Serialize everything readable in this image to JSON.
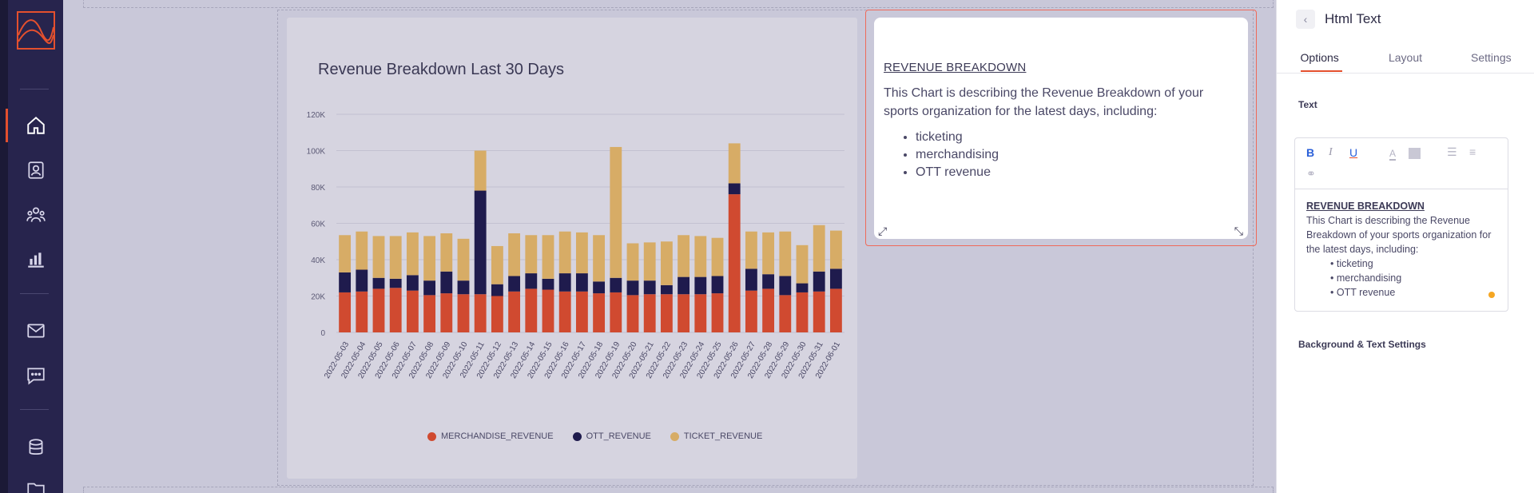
{
  "nav": {
    "items": [
      {
        "icon": "home-icon"
      },
      {
        "icon": "profile-icon"
      },
      {
        "icon": "users-icon"
      },
      {
        "icon": "bar-chart-icon"
      },
      {
        "icon": "mail-icon"
      },
      {
        "icon": "chat-icon"
      },
      {
        "icon": "database-icon"
      },
      {
        "icon": "folder-icon"
      }
    ]
  },
  "chart": {
    "title": "Revenue Breakdown Last 30 Days",
    "legend": [
      "MERCHANDISE_REVENUE",
      "OTT_REVENUE",
      "TICKET_REVENUE"
    ]
  },
  "chart_data": {
    "type": "bar",
    "title": "Revenue Breakdown Last 30 Days",
    "stacked": true,
    "ylim": [
      0,
      120000
    ],
    "yticks": [
      "0",
      "20K",
      "40K",
      "60K",
      "80K",
      "100K",
      "120K"
    ],
    "categories": [
      "2022-05-03",
      "2022-05-04",
      "2022-05-05",
      "2022-05-06",
      "2022-05-07",
      "2022-05-08",
      "2022-05-09",
      "2022-05-10",
      "2022-05-11",
      "2022-05-12",
      "2022-05-13",
      "2022-05-14",
      "2022-05-15",
      "2022-05-16",
      "2022-05-17",
      "2022-05-18",
      "2022-05-19",
      "2022-05-20",
      "2022-05-21",
      "2022-05-22",
      "2022-05-23",
      "2022-05-24",
      "2022-05-25",
      "2022-05-26",
      "2022-05-27",
      "2022-05-28",
      "2022-05-29",
      "2022-05-30",
      "2022-05-31",
      "2022-06-01"
    ],
    "series": [
      {
        "name": "MERCHANDISE_REVENUE",
        "color": "#d04a30",
        "values": [
          22000,
          22500,
          24000,
          24500,
          23000,
          20500,
          21500,
          21000,
          21000,
          20000,
          22500,
          24000,
          23500,
          22500,
          22500,
          21500,
          22000,
          20500,
          21000,
          21000,
          21000,
          21000,
          21500,
          76000,
          23000,
          24000,
          20500,
          22000,
          22500,
          24000
        ]
      },
      {
        "name": "OTT_REVENUE",
        "color": "#1f1b4d",
        "values": [
          11000,
          12000,
          6000,
          5000,
          8500,
          8000,
          12000,
          7500,
          57000,
          6500,
          8500,
          8500,
          6000,
          10000,
          10000,
          6500,
          8000,
          8000,
          7500,
          5000,
          9500,
          9500,
          9500,
          6000,
          12000,
          8000,
          10500,
          5000,
          11000,
          11000
        ]
      },
      {
        "name": "TICKET_REVENUE",
        "color": "#d7ac66",
        "values": [
          20500,
          21000,
          23000,
          23500,
          23500,
          24500,
          21000,
          23000,
          22000,
          21000,
          23500,
          21000,
          24000,
          23000,
          22500,
          25500,
          72000,
          20500,
          21000,
          24000,
          23000,
          22500,
          21000,
          22000,
          20500,
          23000,
          24500,
          21000,
          25500,
          21000
        ]
      }
    ]
  },
  "text_card": {
    "heading": "REVENUE BREAKDOWN",
    "paragraph": "This Chart is describing the Revenue Breakdown of your sports organization for the latest days, including:",
    "items": [
      "ticketing",
      "merchandising",
      "OTT revenue"
    ]
  },
  "panel": {
    "title": "Html Text",
    "tabs": [
      "Options",
      "Layout",
      "Settings"
    ],
    "active_tab": "Options",
    "text_label": "Text",
    "bg_label": "Background & Text Settings",
    "editor": {
      "heading": "REVENUE BREAKDOWN",
      "paragraph": "This Chart is describing the Revenue Breakdown of your sports organization for the latest days, including:",
      "items": [
        "ticketing",
        "merchandising",
        "OTT revenue"
      ]
    }
  }
}
